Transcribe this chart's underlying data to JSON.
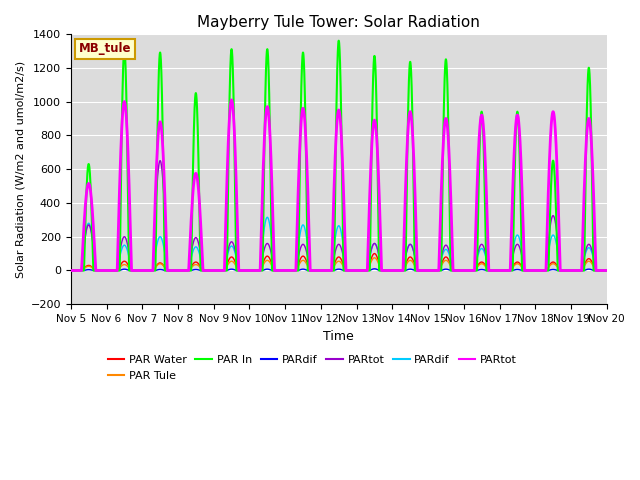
{
  "title": "Mayberry Tule Tower: Solar Radiation",
  "ylabel": "Solar Radiation (W/m2 and umol/m2/s)",
  "xlabel": "Time",
  "ylim": [
    -200,
    1400
  ],
  "yticks": [
    -200,
    0,
    200,
    400,
    600,
    800,
    1000,
    1200,
    1400
  ],
  "xlim": [
    5,
    20
  ],
  "xtick_labels": [
    "Nov 5",
    "Nov 6",
    "Nov 7",
    "Nov 8",
    "Nov 9",
    "Nov 10",
    "Nov 11",
    "Nov 12",
    "Nov 13",
    "Nov 14",
    "Nov 15",
    "Nov 16",
    "Nov 17",
    "Nov 18",
    "Nov 19",
    "Nov 20"
  ],
  "background_color": "#dcdcdc",
  "legend_label": "MB_tule",
  "par_in_peaks": [
    630,
    1310,
    1290,
    1050,
    1310,
    1310,
    1290,
    1360,
    1270,
    1235,
    1250,
    940,
    940,
    650,
    1200
  ],
  "par_tot_mag_peaks": [
    515,
    1000,
    880,
    575,
    1010,
    970,
    960,
    950,
    890,
    940,
    900,
    920,
    920,
    940,
    900
  ],
  "par_water_peaks": [
    30,
    55,
    45,
    50,
    80,
    85,
    85,
    80,
    100,
    80,
    80,
    50,
    50,
    50,
    70
  ],
  "par_tule_peaks": [
    25,
    35,
    40,
    35,
    55,
    60,
    60,
    55,
    75,
    60,
    60,
    40,
    40,
    40,
    55
  ],
  "par_dif_blue_peaks": [
    5,
    8,
    6,
    6,
    8,
    8,
    8,
    8,
    10,
    8,
    8,
    6,
    6,
    6,
    8
  ],
  "par_tot_purple_peaks": [
    270,
    200,
    650,
    195,
    170,
    160,
    155,
    155,
    160,
    155,
    150,
    155,
    155,
    325,
    155
  ],
  "par_dif_cyan_peaks": [
    280,
    150,
    200,
    140,
    145,
    315,
    270,
    265,
    160,
    155,
    125,
    130,
    210,
    210,
    135
  ],
  "colors": {
    "par_water": "#ff0000",
    "par_tule": "#ff8800",
    "par_in": "#00ff00",
    "par_dif_blue": "#0000ff",
    "par_tot_purple": "#9900cc",
    "par_dif_cyan": "#00ccff",
    "par_tot_mag": "#ff00ff"
  },
  "legend_entries": [
    {
      "label": "PAR Water",
      "color": "#ff0000"
    },
    {
      "label": "PAR Tule",
      "color": "#ff8800"
    },
    {
      "label": "PAR In",
      "color": "#00ff00"
    },
    {
      "label": "PARdif",
      "color": "#0000ff"
    },
    {
      "label": "PARtot",
      "color": "#9900cc"
    },
    {
      "label": "PARdif",
      "color": "#00ccff"
    },
    {
      "label": "PARtot",
      "color": "#ff00ff"
    }
  ]
}
